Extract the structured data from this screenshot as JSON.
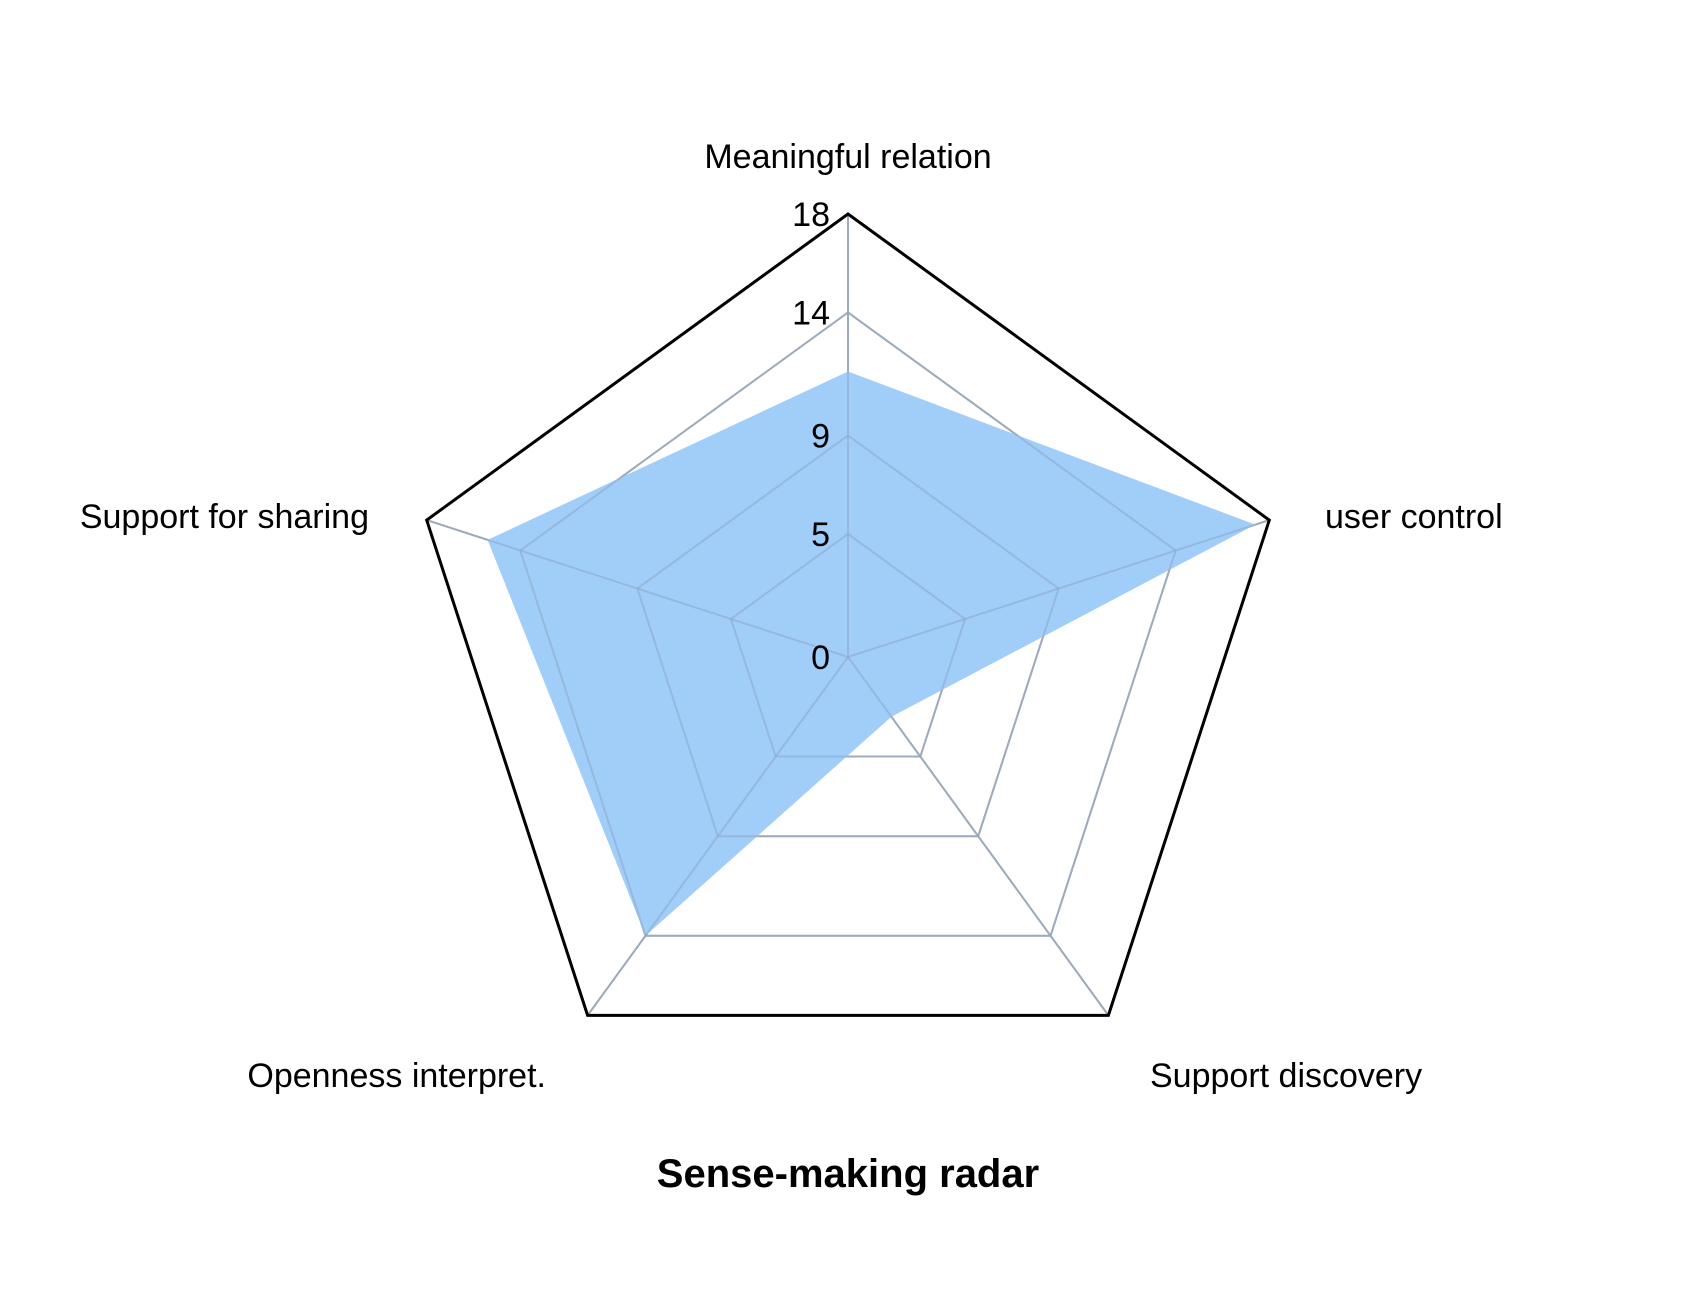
{
  "chart_data": {
    "type": "radar",
    "title": "Sense-making radar",
    "axes": [
      "Meaningful relation",
      "user control",
      "Support discovery",
      "Openness interpret.",
      "Support for sharing"
    ],
    "ticks": [
      0,
      5,
      9,
      14,
      18
    ],
    "range": [
      0,
      18
    ],
    "grid": true,
    "series": [
      {
        "values": [
          11.6,
          17.4,
          3.0,
          14.0,
          15.4
        ]
      }
    ],
    "colors": {
      "fill": "#a1cdf9",
      "outer_frame": "#000000",
      "grid": "#b0b0b0",
      "text": "#000000"
    }
  }
}
